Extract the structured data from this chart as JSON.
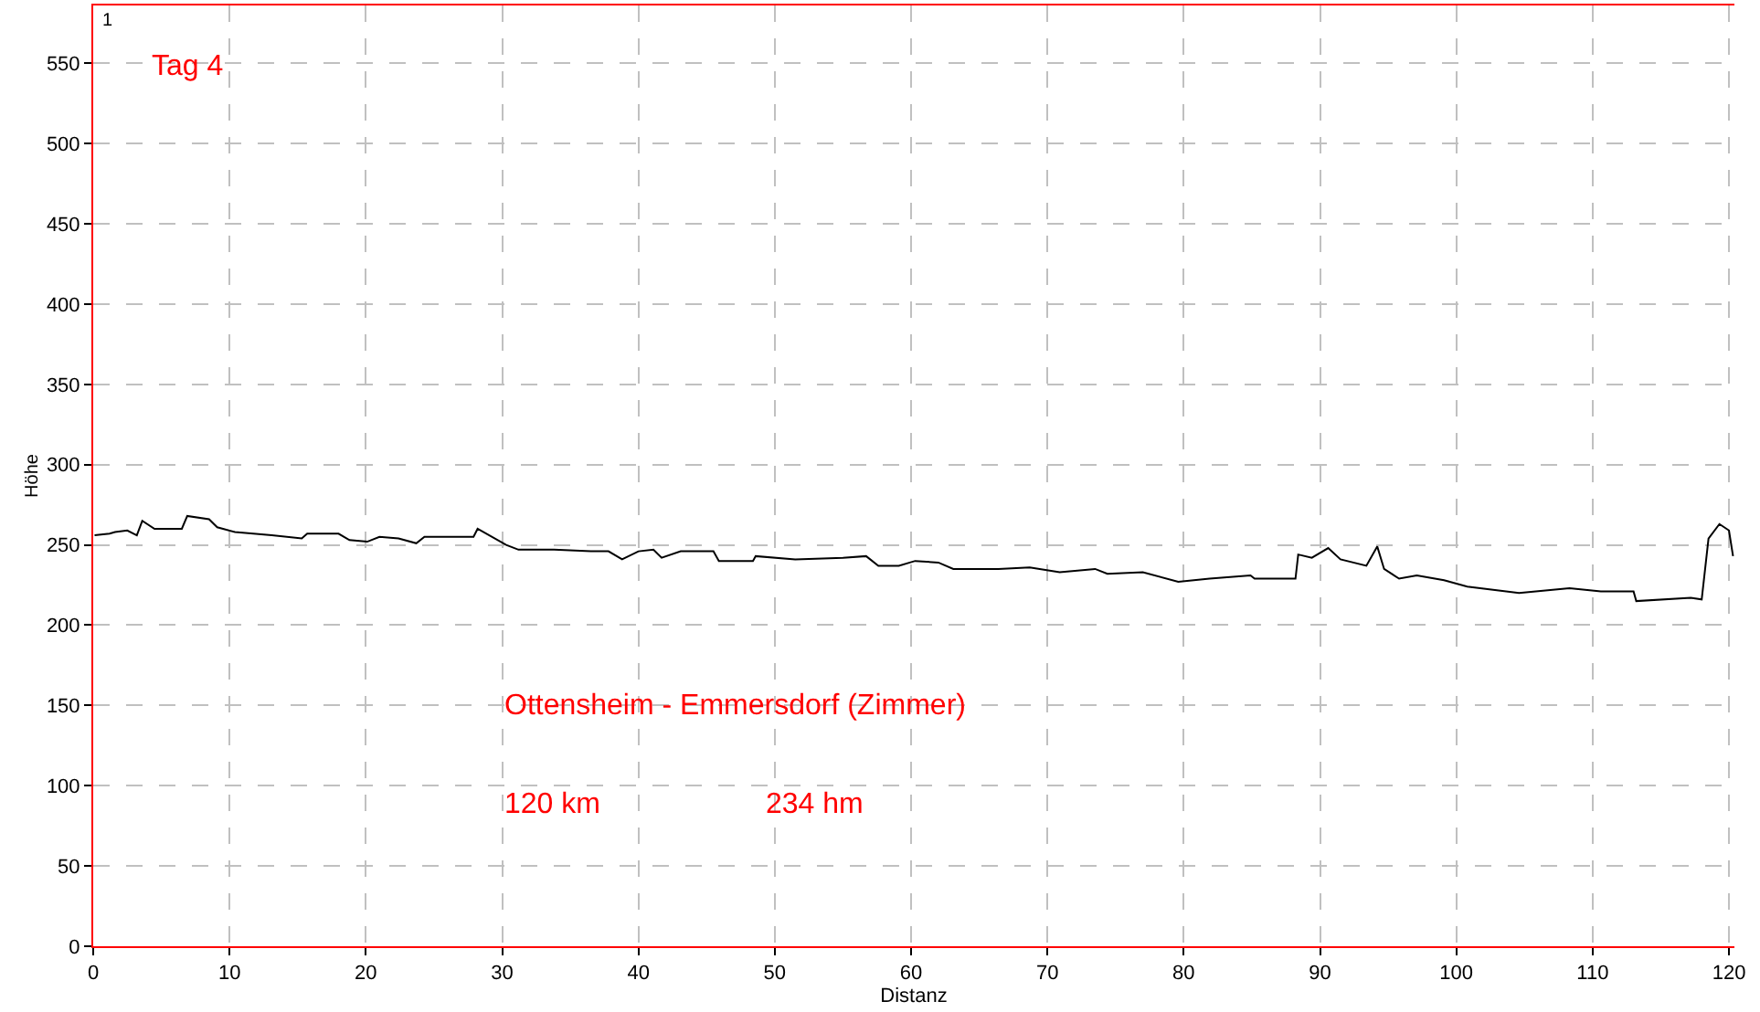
{
  "chart_data": {
    "type": "line",
    "xlabel": "Distanz",
    "ylabel": "Höhe",
    "annotations": [
      "1",
      "Tag 4",
      "Ottensheim - Emmersdorf (Zimmer)",
      "120 km",
      "234 hm"
    ],
    "series": [
      {
        "color": "#000000",
        "x": [
          0.1,
          1.2,
          1.6,
          2.5,
          3.2,
          3.6,
          4.5,
          6.5,
          6.9,
          8.5,
          9.1,
          10.4,
          13.1,
          15.3,
          15.7,
          18,
          18.8,
          20.1,
          21,
          22.4,
          23.7,
          24.3,
          26.7,
          27.9,
          28.2,
          30.3,
          31.2,
          33.8,
          36.5,
          37.8,
          38.8,
          40,
          41.1,
          41.7,
          43.1,
          45.5,
          45.9,
          48.4,
          48.6,
          51.5,
          55,
          56.7,
          57.6,
          59.1,
          60.3,
          62,
          63.1,
          66.4,
          68.7,
          70.9,
          73.5,
          74.4,
          77,
          79.6,
          81.9,
          84.9,
          85.2,
          88.2,
          88.4,
          89.4,
          90.6,
          91.5,
          93.4,
          94.2,
          94.7,
          95.8,
          97.1,
          99.1,
          100.8,
          104.6,
          108.3,
          110.6,
          113,
          113.2,
          117.2,
          118,
          118.5,
          119.3,
          120,
          120.3
        ],
        "values": [
          256,
          257,
          258,
          259,
          256,
          265,
          260,
          260,
          268,
          266,
          261,
          258,
          256,
          254,
          257,
          257,
          253,
          252,
          255,
          254,
          251,
          255,
          255,
          255,
          260,
          250,
          247,
          247,
          246,
          246,
          241,
          246,
          247,
          242,
          246,
          246,
          240,
          240,
          243,
          241,
          242,
          243,
          237,
          237,
          240,
          239,
          235,
          235,
          236,
          233,
          235,
          232,
          233,
          227,
          229,
          231,
          229,
          229,
          244,
          242,
          248,
          241,
          237,
          249,
          235,
          229,
          231,
          228,
          224,
          220,
          223,
          221,
          221,
          215,
          217,
          216,
          254,
          263,
          259,
          243
        ]
      }
    ],
    "xlim": [
      0,
      120.4
    ],
    "ylim": [
      0,
      586
    ],
    "xticks": [
      0,
      10,
      20,
      30,
      40,
      50,
      60,
      70,
      80,
      90,
      100,
      110,
      120
    ],
    "yticks": [
      0,
      50,
      100,
      150,
      200,
      250,
      300,
      350,
      400,
      450,
      500,
      550
    ],
    "grid": true,
    "marker": "none",
    "line_style": "solid"
  }
}
